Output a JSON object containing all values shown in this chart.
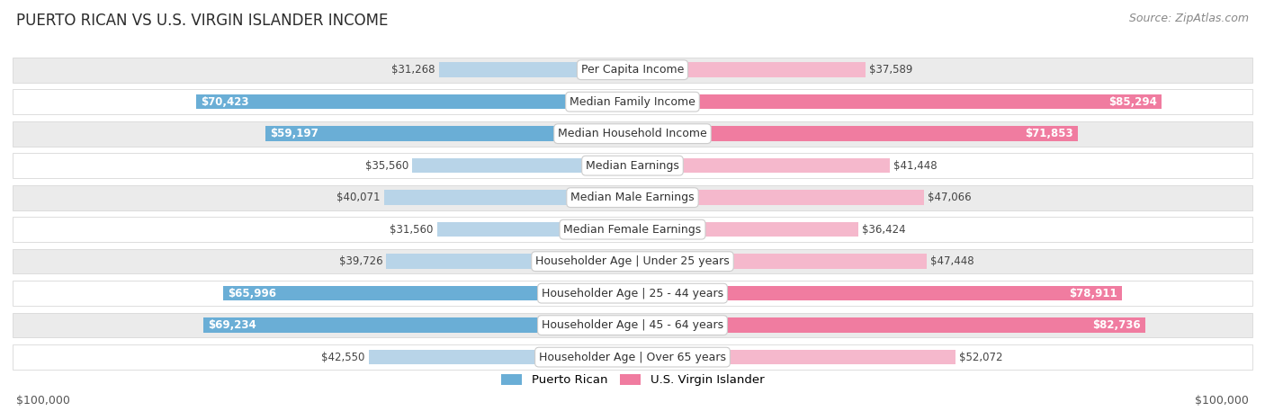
{
  "title": "PUERTO RICAN VS U.S. VIRGIN ISLANDER INCOME",
  "source": "Source: ZipAtlas.com",
  "categories": [
    "Per Capita Income",
    "Median Family Income",
    "Median Household Income",
    "Median Earnings",
    "Median Male Earnings",
    "Median Female Earnings",
    "Householder Age | Under 25 years",
    "Householder Age | 25 - 44 years",
    "Householder Age | 45 - 64 years",
    "Householder Age | Over 65 years"
  ],
  "left_values": [
    31268,
    70423,
    59197,
    35560,
    40071,
    31560,
    39726,
    65996,
    69234,
    42550
  ],
  "right_values": [
    37589,
    85294,
    71853,
    41448,
    47066,
    36424,
    47448,
    78911,
    82736,
    52072
  ],
  "left_labels": [
    "$31,268",
    "$70,423",
    "$59,197",
    "$35,560",
    "$40,071",
    "$31,560",
    "$39,726",
    "$65,996",
    "$69,234",
    "$42,550"
  ],
  "right_labels": [
    "$37,589",
    "$85,294",
    "$71,853",
    "$41,448",
    "$47,066",
    "$36,424",
    "$47,448",
    "$78,911",
    "$82,736",
    "$52,072"
  ],
  "left_color_solid": "#6aaed6",
  "left_color_light": "#b8d4e8",
  "right_color_solid": "#f07ca0",
  "right_color_light": "#f5b8cc",
  "max_value": 100000,
  "legend_left": "Puerto Rican",
  "legend_right": "U.S. Virgin Islander",
  "solid_threshold": 55000,
  "title_fontsize": 12,
  "source_fontsize": 9,
  "bar_label_fontsize": 8.5,
  "category_fontsize": 9,
  "axis_label_fontsize": 9,
  "background_color": "#ffffff",
  "row_bg_alt": "#ebebeb",
  "row_border": "#d8d8d8"
}
